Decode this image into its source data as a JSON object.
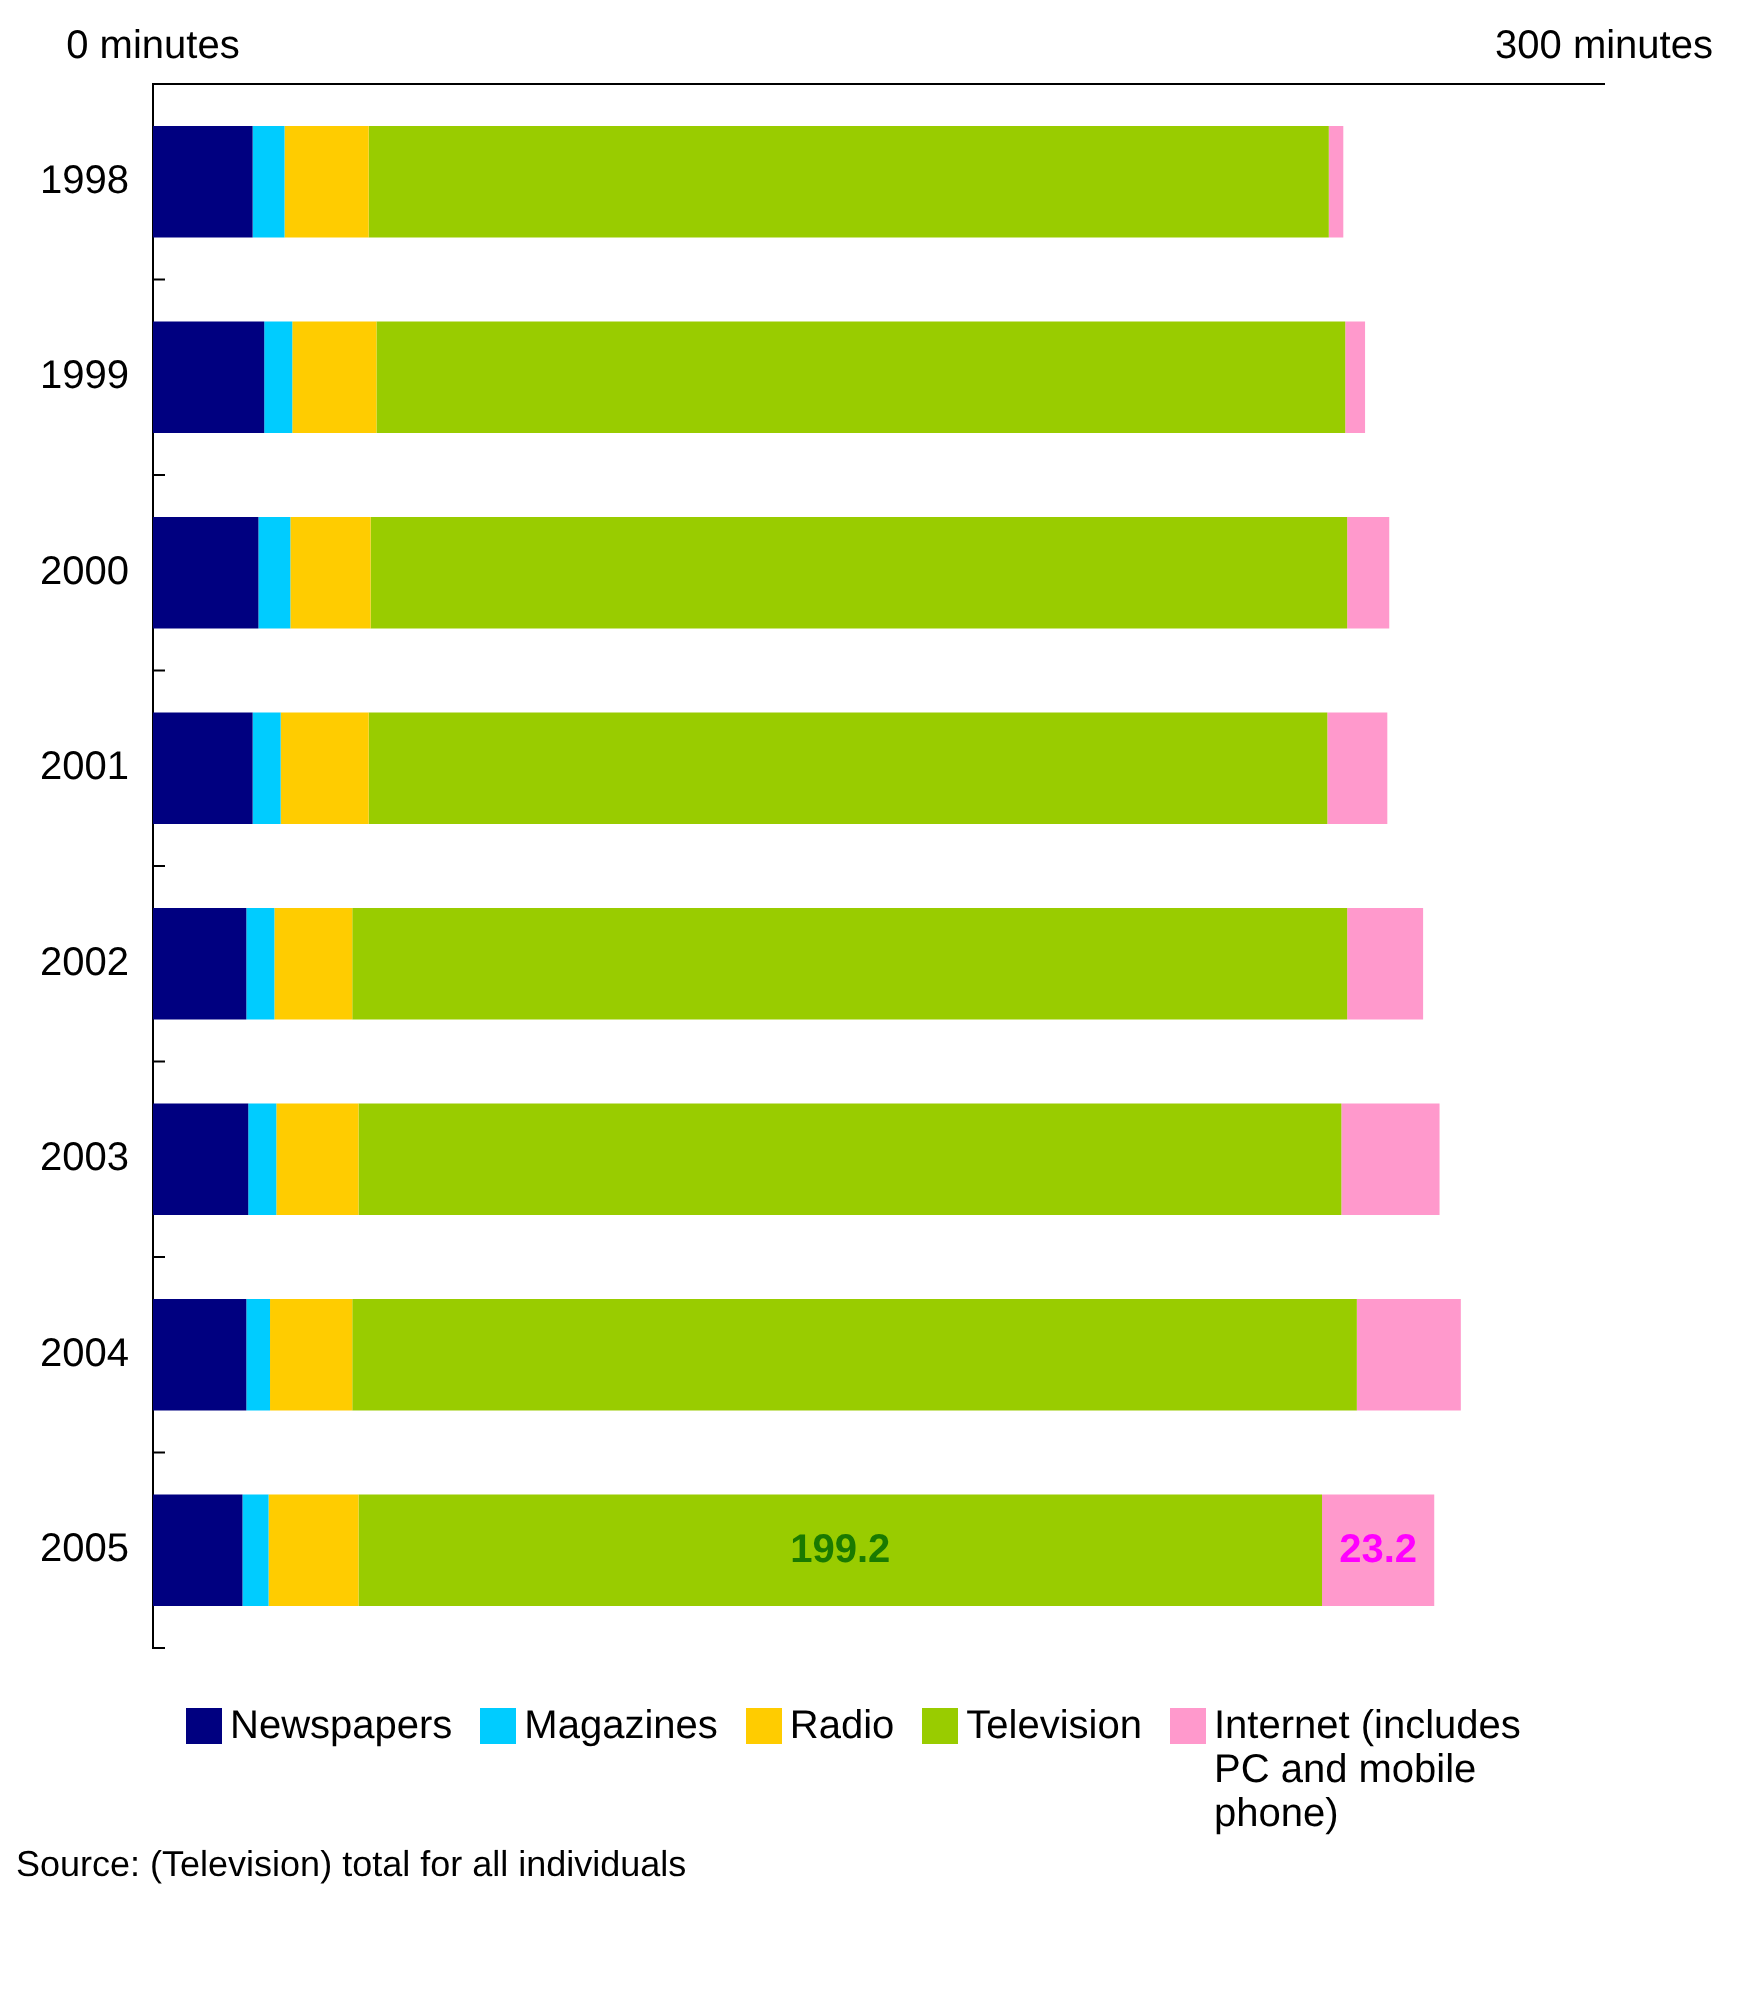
{
  "chart_data": {
    "type": "bar",
    "orientation": "horizontal",
    "stacked": true,
    "categories": [
      "1998",
      "1999",
      "2000",
      "2001",
      "2002",
      "2003",
      "2004",
      "2005"
    ],
    "series": [
      {
        "name": "Newspapers",
        "color": "#000080",
        "values": [
          20.6,
          23.0,
          21.8,
          20.6,
          19.3,
          19.7,
          19.3,
          18.5
        ]
      },
      {
        "name": "Magazines",
        "color": "#00ccff",
        "values": [
          6.6,
          5.8,
          6.6,
          5.8,
          5.8,
          5.8,
          4.9,
          5.4
        ]
      },
      {
        "name": "Radio",
        "color": "#ffcc00",
        "values": [
          17.4,
          17.4,
          16.6,
          18.2,
          16.1,
          17.0,
          17.0,
          18.6
        ]
      },
      {
        "name": "Television",
        "color": "#99cc00",
        "values": [
          198.5,
          200.3,
          201.9,
          198.2,
          205.7,
          203.2,
          207.7,
          199.2
        ],
        "value_labels": [
          null,
          null,
          null,
          null,
          null,
          null,
          null,
          "199.2"
        ]
      },
      {
        "name": "Internet (includes PC and mobile phone)",
        "color": "#ff99cc",
        "values": [
          3.0,
          4.1,
          8.7,
          12.4,
          15.7,
          20.3,
          21.5,
          23.2
        ],
        "value_labels": [
          null,
          null,
          null,
          null,
          null,
          null,
          null,
          "23.2"
        ]
      }
    ],
    "xlim": [
      0,
      300
    ],
    "xticks": [
      {
        "value": 0,
        "label": "0 minutes"
      },
      {
        "value": 300,
        "label": "300 minutes"
      }
    ],
    "grid": false,
    "legend": "bottom",
    "annotations": [
      "Source: (Television) total for all individuals"
    ]
  }
}
